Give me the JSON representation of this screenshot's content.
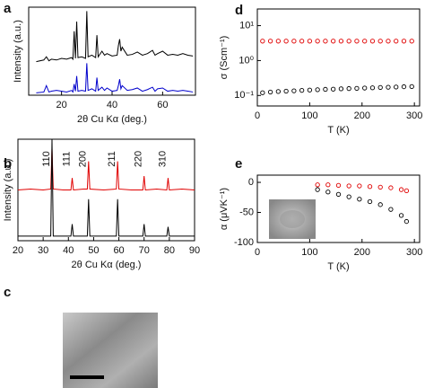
{
  "chart_data": [
    {
      "type": "line",
      "panel": "a",
      "xlabel": "2θ Cu Kα (deg.)",
      "ylabel": "Intensity (a.u.)",
      "x": [
        10,
        13,
        14,
        15,
        16,
        18,
        20,
        22,
        24,
        24.5,
        25,
        25.5,
        26,
        26.5,
        28,
        29.5,
        30,
        30.5,
        32,
        33.5,
        34,
        34.5,
        36,
        37,
        38,
        40,
        42,
        42.5,
        43,
        43.5,
        44,
        46,
        48,
        50,
        52,
        54,
        56,
        57,
        58,
        60,
        62,
        64,
        66,
        68,
        70,
        72
      ],
      "series": [
        {
          "color": "#000000",
          "values": [
            42,
            44,
            48,
            43,
            45,
            44,
            46,
            45,
            47,
            45,
            80,
            46,
            92,
            47,
            48,
            46,
            105,
            48,
            50,
            47,
            75,
            48,
            55,
            50,
            52,
            49,
            50,
            62,
            70,
            55,
            60,
            50,
            51,
            54,
            50,
            52,
            56,
            50,
            52,
            55,
            50,
            51,
            50,
            52,
            50,
            49
          ]
        },
        {
          "color": "#0000cc",
          "values": [
            3,
            4,
            12,
            4,
            5,
            6,
            5,
            4,
            6,
            4,
            14,
            5,
            24,
            5,
            6,
            5,
            40,
            6,
            8,
            5,
            22,
            6,
            10,
            6,
            9,
            5,
            6,
            12,
            20,
            8,
            12,
            6,
            7,
            9,
            5,
            7,
            10,
            5,
            8,
            9,
            5,
            6,
            5,
            6,
            5,
            4
          ]
        }
      ],
      "xlim": [
        7,
        73
      ],
      "ylim": [
        0,
        110
      ],
      "xticks": [
        20,
        40,
        60
      ]
    },
    {
      "type": "line",
      "panel": "b",
      "xlabel": "2θ Cu Kα (deg.)",
      "ylabel": "Intensity (a.u.)",
      "x": [
        20,
        25,
        30,
        33,
        33.5,
        34,
        38,
        41,
        41.5,
        42,
        46,
        47.5,
        48,
        48.5,
        54,
        59,
        59.5,
        60,
        65,
        69.5,
        70,
        70.5,
        75,
        79,
        79.5,
        80,
        85,
        90
      ],
      "series": [
        {
          "color": "#e00000",
          "values": [
            55,
            56,
            55,
            56,
            100,
            56,
            55,
            55,
            68,
            55,
            56,
            56,
            86,
            56,
            55,
            56,
            86,
            56,
            55,
            55,
            70,
            55,
            56,
            55,
            68,
            55,
            56,
            55
          ]
        },
        {
          "color": "#000000",
          "values": [
            5,
            5,
            5,
            5,
            110,
            5,
            5,
            5,
            18,
            5,
            5,
            5,
            45,
            5,
            5,
            5,
            45,
            5,
            5,
            5,
            18,
            5,
            5,
            5,
            15,
            5,
            5,
            5
          ]
        }
      ],
      "annotations": [
        {
          "text": "110",
          "x": 33.5
        },
        {
          "text": "111",
          "x": 41.5
        },
        {
          "text": "200",
          "x": 48
        },
        {
          "text": "211",
          "x": 59.5
        },
        {
          "text": "220",
          "x": 70
        },
        {
          "text": "310",
          "x": 79.5
        }
      ],
      "xlim": [
        20,
        90
      ],
      "ylim": [
        0,
        110
      ],
      "xticks": [
        20,
        30,
        40,
        50,
        60,
        70,
        80,
        90
      ]
    },
    {
      "type": "scatter",
      "panel": "d",
      "xlabel": "T (K)",
      "ylabel": "σ (Scm⁻¹)",
      "log_y": true,
      "x": [
        10,
        25,
        40,
        55,
        70,
        85,
        100,
        115,
        130,
        145,
        160,
        175,
        190,
        205,
        220,
        235,
        250,
        265,
        280,
        295
      ],
      "series": [
        {
          "color": "#e00000",
          "values": [
            3.6,
            3.6,
            3.6,
            3.6,
            3.6,
            3.6,
            3.6,
            3.6,
            3.6,
            3.6,
            3.6,
            3.6,
            3.6,
            3.6,
            3.6,
            3.6,
            3.6,
            3.6,
            3.6,
            3.6
          ]
        },
        {
          "color": "#000000",
          "values": [
            0.12,
            0.125,
            0.13,
            0.133,
            0.136,
            0.14,
            0.143,
            0.146,
            0.15,
            0.152,
            0.155,
            0.158,
            0.16,
            0.163,
            0.166,
            0.17,
            0.172,
            0.175,
            0.178,
            0.18
          ]
        }
      ],
      "xlim": [
        0,
        310
      ],
      "ylim": [
        0.05,
        30
      ],
      "xticks": [
        0,
        100,
        200,
        300
      ],
      "yticks": [
        {
          "value": 0.1,
          "label": "10⁻¹"
        },
        {
          "value": 1,
          "label": "10⁰"
        },
        {
          "value": 10,
          "label": "10¹"
        }
      ]
    },
    {
      "type": "scatter",
      "panel": "e",
      "xlabel": "T (K)",
      "ylabel": "α (μVK⁻¹)",
      "x": [
        115,
        135,
        155,
        175,
        195,
        215,
        235,
        255,
        275,
        285
      ],
      "series": [
        {
          "color": "#e00000",
          "values": [
            -4,
            -4,
            -5,
            -6,
            -6,
            -7,
            -8,
            -9,
            -12,
            -14
          ]
        },
        {
          "color": "#000000",
          "values": [
            -12,
            -16,
            -20,
            -24,
            -28,
            -32,
            -37,
            -45,
            -55,
            -65
          ]
        }
      ],
      "xlim": [
        0,
        310
      ],
      "ylim": [
        -100,
        12
      ],
      "xticks": [
        0,
        100,
        200,
        300
      ],
      "yticks": [
        -100,
        -50,
        0
      ]
    }
  ],
  "image_panel": {
    "panel": "c"
  }
}
